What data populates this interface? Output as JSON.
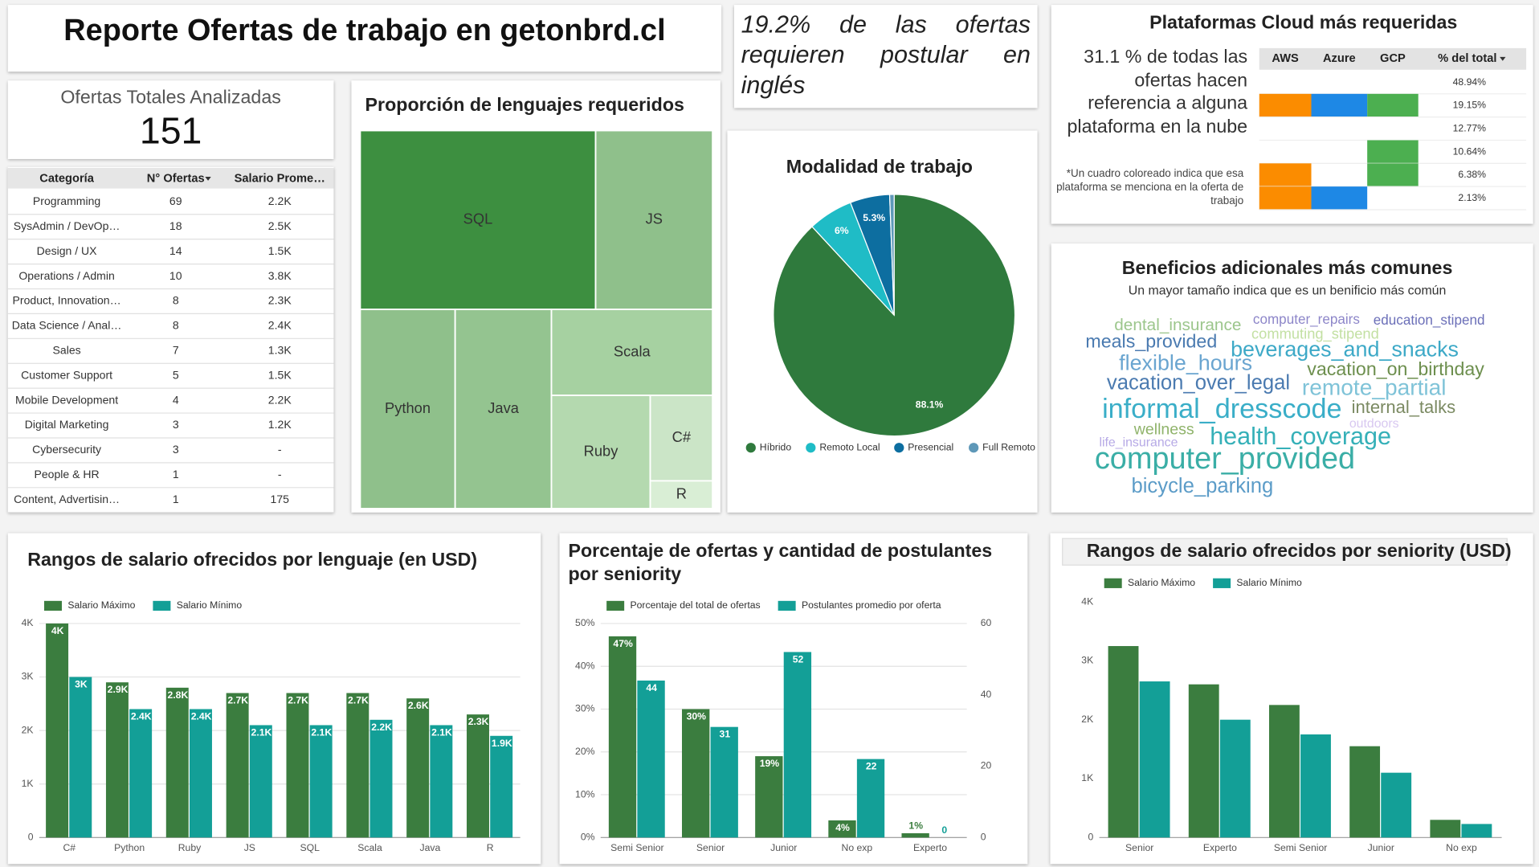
{
  "header": {
    "title": "Reporte Ofertas de trabajo en getonbrd.cl"
  },
  "english": {
    "text": "19.2% de las ofertas requieren postular en inglés"
  },
  "kpi": {
    "label": "Ofertas Totales Analizadas",
    "value": 151
  },
  "category_table": {
    "columns": [
      "Categoría",
      "N° Ofertas",
      "Salario Prome…"
    ],
    "rows": [
      [
        "Programming",
        69,
        "2.2K"
      ],
      [
        "SysAdmin / DevOp…",
        18,
        "2.5K"
      ],
      [
        "Design / UX",
        14,
        "1.5K"
      ],
      [
        "Operations / Admin",
        10,
        "3.8K"
      ],
      [
        "Product, Innovation…",
        8,
        "2.3K"
      ],
      [
        "Data Science / Anal…",
        8,
        "2.4K"
      ],
      [
        "Sales",
        7,
        "1.3K"
      ],
      [
        "Customer Support",
        5,
        "1.5K"
      ],
      [
        "Mobile Development",
        4,
        "2.2K"
      ],
      [
        "Digital Marketing",
        3,
        "1.2K"
      ],
      [
        "Cybersecurity",
        3,
        "-"
      ],
      [
        "People & HR",
        1,
        "-"
      ],
      [
        "Content, Advertisin…",
        1,
        "175"
      ]
    ]
  },
  "cloud_table": {
    "title": "Plataformas Cloud más requeridas",
    "summary": "31.1 % de todas las ofertas hacen referencia a alguna plataforma en la nube",
    "note": "*Un cuadro coloreado indica que esa plataforma se menciona en la oferta de trabajo",
    "columns": [
      "AWS",
      "Azure",
      "GCP",
      "% del total"
    ],
    "colors": [
      "#fb8c00",
      "#1e88e5",
      "#4caf50"
    ],
    "rows": [
      {
        "platforms": [
          false,
          false,
          false
        ],
        "share": "48.94%"
      },
      {
        "platforms": [
          true,
          true,
          true
        ],
        "share": "19.15%"
      },
      {
        "platforms": [
          false,
          false,
          false
        ],
        "share": "12.77%"
      },
      {
        "platforms": [
          false,
          false,
          true
        ],
        "share": "10.64%"
      },
      {
        "platforms": [
          true,
          false,
          true
        ],
        "share": "6.38%"
      },
      {
        "platforms": [
          true,
          true,
          false
        ],
        "share": "2.13%"
      }
    ]
  },
  "wordcloud": {
    "title": "Beneficios adicionales más comunes",
    "subtitle": "Un mayor tamaño indica que es un benificio más común",
    "words": [
      {
        "text": "dental_insurance",
        "color": "#9cc68c"
      },
      {
        "text": "computer_repairs",
        "color": "#8d86c9"
      },
      {
        "text": "education_stipend",
        "color": "#6b6fb8"
      },
      {
        "text": "commuting_stipend",
        "color": "#c3e0a3"
      },
      {
        "text": "meals_provided",
        "color": "#4a7ab0"
      },
      {
        "text": "beverages_and_snacks",
        "color": "#3da9c7"
      },
      {
        "text": "flexible_hours",
        "color": "#6aa5d0"
      },
      {
        "text": "vacation_on_birthday",
        "color": "#6d8f4e"
      },
      {
        "text": "vacation_over_legal",
        "color": "#4a7ab0"
      },
      {
        "text": "remote_partial",
        "color": "#7fc3d8"
      },
      {
        "text": "informal_dresscode",
        "color": "#3aaec8"
      },
      {
        "text": "internal_talks",
        "color": "#7b8a62"
      },
      {
        "text": "wellness",
        "color": "#8fb36a"
      },
      {
        "text": "outdoors",
        "color": "#d8c8f0"
      },
      {
        "text": "life_insurance",
        "color": "#b6a9e6"
      },
      {
        "text": "health_coverage",
        "color": "#35b0b8"
      },
      {
        "text": "computer_provided",
        "color": "#3aaea6"
      },
      {
        "text": "bicycle_parking",
        "color": "#5c9cc8"
      }
    ]
  },
  "chart_data": [
    {
      "type": "treemap",
      "title": "Proporción de lenguajes requeridos",
      "categories": [
        "SQL",
        "JS",
        "Python",
        "Java",
        "Scala",
        "Ruby",
        "C#",
        "R"
      ],
      "values": [
        31.6,
        15.7,
        14.2,
        14.4,
        10.4,
        8.4,
        4.0,
        1.3
      ],
      "colors": [
        "#3d8f40",
        "#8fc08b",
        "#8fc08b",
        "#94c490",
        "#a6d1a1",
        "#b4d9af",
        "#cbe5c7",
        "#d9eed5"
      ]
    },
    {
      "type": "pie",
      "title": "Modalidad de trabajo",
      "categories": [
        "Híbrido",
        "Remoto Local",
        "Presencial",
        "Full Remoto"
      ],
      "values": [
        88.1,
        6,
        5.3,
        0.6
      ],
      "value_labels": [
        "88.1%",
        "6%",
        "5.3%",
        null
      ],
      "colors": [
        "#2f7a3d",
        "#1fbcc6",
        "#0d6ea0",
        "#5e98b8"
      ]
    },
    {
      "type": "bar",
      "title": "Rangos de salario ofrecidos por lenguaje (en USD)",
      "categories": [
        "C#",
        "Python",
        "Ruby",
        "JS",
        "SQL",
        "Scala",
        "Java",
        "R"
      ],
      "series": [
        {
          "name": "Salario Máximo",
          "color": "#3b7d3f",
          "values": [
            4000,
            2900,
            2800,
            2700,
            2700,
            2700,
            2600,
            2300
          ],
          "value_labels": [
            "4K",
            "2.9K",
            "2.8K",
            "2.7K",
            "2.7K",
            "2.7K",
            "2.6K",
            "2.3K"
          ]
        },
        {
          "name": "Salario Mínimo",
          "color": "#139f97",
          "values": [
            3000,
            2400,
            2400,
            2100,
            2100,
            2200,
            2100,
            1900
          ],
          "value_labels": [
            "3K",
            "2.4K",
            "2.4K",
            "2.1K",
            "2.1K",
            "2.2K",
            "2.1K",
            "1.9K"
          ]
        }
      ],
      "ylim": [
        0,
        4000
      ],
      "yticks": [
        0,
        {
          "value": 1000,
          "label": "1K"
        },
        {
          "value": 2000,
          "label": "2K"
        },
        {
          "value": 3000,
          "label": "3K"
        },
        {
          "value": 4000,
          "label": "4K"
        }
      ],
      "grid": true
    },
    {
      "type": "bar",
      "title": "Porcentaje de ofertas y cantidad de postulantes por seniority",
      "categories": [
        "Semi Senior",
        "Senior",
        "Junior",
        "No exp",
        "Experto"
      ],
      "series": [
        {
          "name": "Porcentaje del total de ofertas",
          "color": "#3b7d3f",
          "values": [
            47,
            30,
            19,
            4,
            1
          ],
          "value_labels": [
            "47%",
            "30%",
            "19%",
            "4%",
            "1%"
          ]
        },
        {
          "name": "Postulantes promedio por oferta",
          "color": "#139f97",
          "axis": "y2",
          "values": [
            44,
            31,
            52,
            22,
            0
          ],
          "data_labels": true
        }
      ],
      "ylim": [
        0,
        50
      ],
      "yticks": [
        {
          "value": 0,
          "label": "0%"
        },
        {
          "value": 10,
          "label": "10%"
        },
        {
          "value": 20,
          "label": "20%"
        },
        {
          "value": 30,
          "label": "30%"
        },
        {
          "value": 40,
          "label": "40%"
        },
        {
          "value": 50,
          "label": "50%"
        }
      ],
      "y2lim": [
        0,
        60
      ],
      "y2ticks": [
        0,
        20,
        40,
        60
      ],
      "grid": true
    },
    {
      "type": "bar",
      "title": "Rangos de salario ofrecidos por seniority (USD)",
      "categories": [
        "Senior",
        "Experto",
        "Semi Senior",
        "Junior",
        "No exp"
      ],
      "series": [
        {
          "name": "Salario Máximo",
          "color": "#3b7d3f",
          "values": [
            3250,
            2600,
            2250,
            1550,
            300
          ]
        },
        {
          "name": "Salario Mínimo",
          "color": "#139f97",
          "values": [
            2650,
            2000,
            1750,
            1100,
            230
          ]
        }
      ],
      "ylim": [
        0,
        4000
      ],
      "yticks": [
        0,
        {
          "value": 1000,
          "label": "1K"
        },
        {
          "value": 2000,
          "label": "2K"
        },
        {
          "value": 3000,
          "label": "3K"
        },
        {
          "value": 4000,
          "label": "4K"
        }
      ],
      "grid": false
    }
  ]
}
